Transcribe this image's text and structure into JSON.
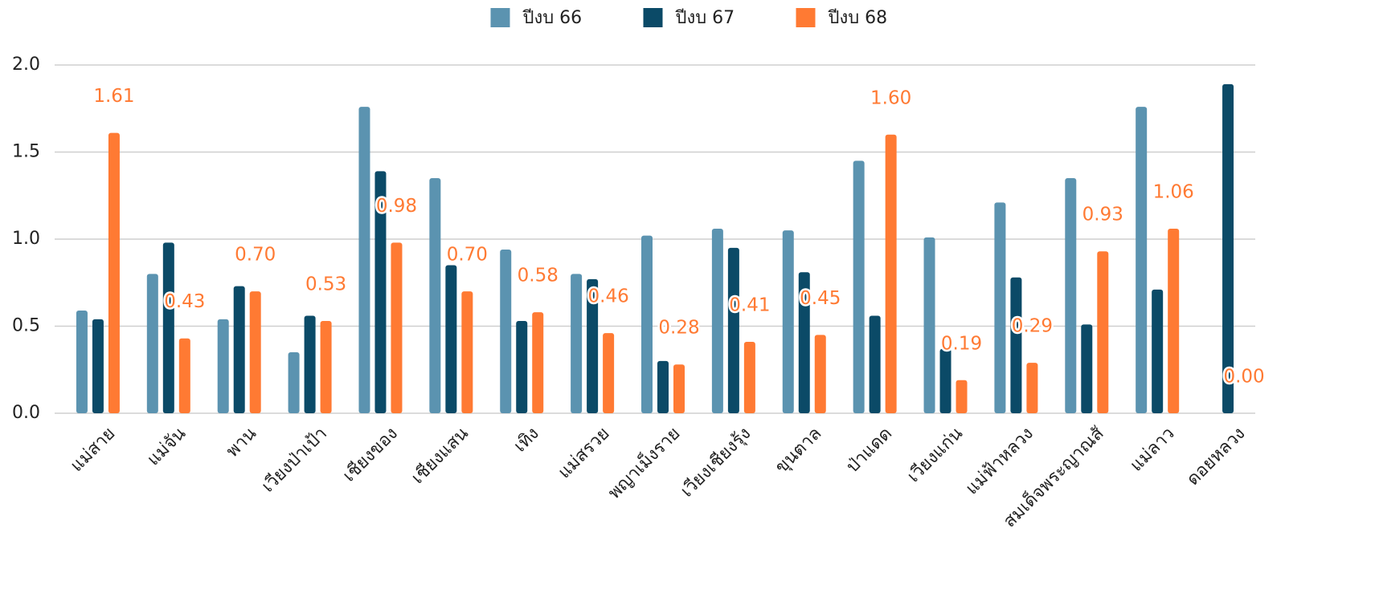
{
  "chart_data": {
    "type": "bar",
    "categories": [
      "แม่สาย",
      "แม่จัน",
      "พาน",
      "เวียงป่าเป้า",
      "เชียงของ",
      "เชียงแสน",
      "เทิง",
      "แม่สรวย",
      "พญาเม็งราย",
      "เวียงเชียงรุ้ง",
      "ขุนตาล",
      "ป่าแดด",
      "เวียงแก่น",
      "แม่ฟ้าหลวง",
      "สมเด็จพระญาณสั",
      "แม่ลาว",
      "ดอยหลวง"
    ],
    "series": [
      {
        "name": "ปีงบ 66",
        "color": "#5b93b0",
        "values": [
          0.59,
          0.8,
          0.54,
          0.35,
          1.76,
          1.35,
          0.94,
          0.8,
          1.02,
          1.06,
          1.05,
          1.45,
          1.01,
          1.21,
          1.35,
          1.76,
          null
        ]
      },
      {
        "name": "ปีงบ 67",
        "color": "#0b4a67",
        "values": [
          0.54,
          0.98,
          0.73,
          0.56,
          1.39,
          0.85,
          0.53,
          0.77,
          0.3,
          0.95,
          0.81,
          0.56,
          0.37,
          0.78,
          0.51,
          0.71,
          1.89
        ]
      },
      {
        "name": "ปีงบ 68",
        "color": "#ff7a33",
        "values": [
          1.61,
          0.43,
          0.7,
          0.53,
          0.98,
          0.7,
          0.58,
          0.46,
          0.28,
          0.41,
          0.45,
          1.6,
          0.19,
          0.29,
          0.93,
          1.06,
          0.0
        ],
        "value_labels": [
          "1.61",
          "0.43",
          "0.70",
          "0.53",
          "0.98",
          "0.70",
          "0.58",
          "0.46",
          "0.28",
          "0.41",
          "0.45",
          "1.60",
          "0.19",
          "0.29",
          "0.93",
          "1.06",
          "0.00"
        ]
      }
    ],
    "ylim": [
      0,
      2
    ],
    "yticks": [
      {
        "value": 0,
        "label": "0.0"
      },
      0.5,
      {
        "value": 1,
        "label": "1.0"
      },
      1.5,
      {
        "value": 2,
        "label": "2.0"
      }
    ],
    "grid": true,
    "legend": "top"
  }
}
